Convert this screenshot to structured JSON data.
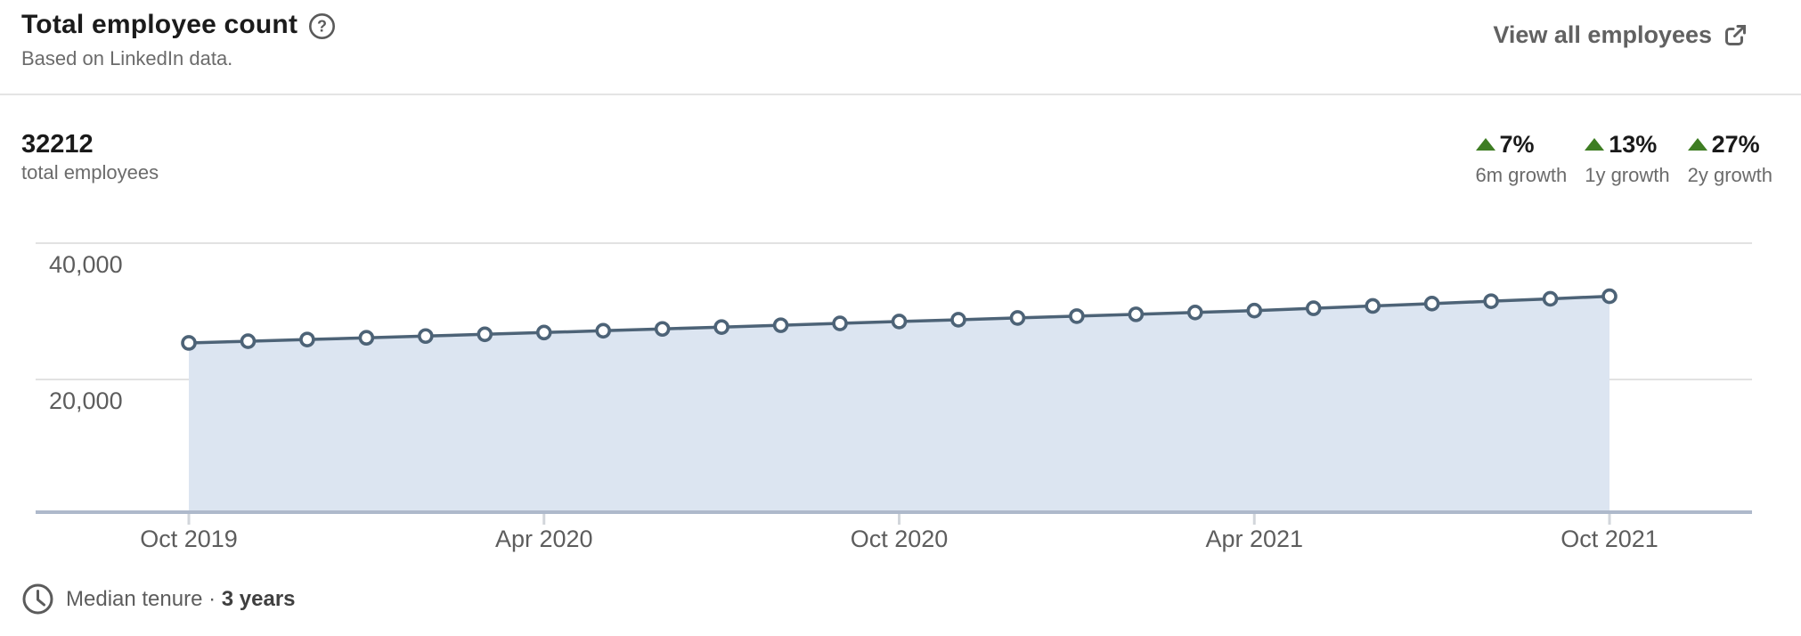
{
  "header": {
    "title": "Total employee count",
    "subtitle": "Based on LinkedIn data.",
    "view_all_label": "View all employees",
    "icons": {
      "help": "help-circle-icon",
      "external": "external-link-icon"
    }
  },
  "stats": {
    "total_value": "32212",
    "total_label": "total employees",
    "growth": [
      {
        "direction": "up",
        "pct": "7%",
        "label": "6m growth"
      },
      {
        "direction": "up",
        "pct": "13%",
        "label": "1y growth"
      },
      {
        "direction": "up",
        "pct": "27%",
        "label": "2y growth"
      }
    ],
    "growth_up_color": "#3e7d23"
  },
  "footer": {
    "median_tenure_label": "Median tenure ·",
    "median_tenure_value": "3 years",
    "icon": "clock-icon"
  },
  "chart_data": {
    "type": "area",
    "title": "Total employee count",
    "x": [
      "Oct 2019",
      "Nov 2019",
      "Dec 2019",
      "Jan 2020",
      "Feb 2020",
      "Mar 2020",
      "Apr 2020",
      "May 2020",
      "Jun 2020",
      "Jul 2020",
      "Aug 2020",
      "Sep 2020",
      "Oct 2020",
      "Nov 2020",
      "Dec 2020",
      "Jan 2021",
      "Feb 2021",
      "Mar 2021",
      "Apr 2021",
      "May 2021",
      "Jun 2021",
      "Jul 2021",
      "Aug 2021",
      "Sep 2021",
      "Oct 2021"
    ],
    "values": [
      25364,
      25612,
      25862,
      26115,
      26371,
      26629,
      26889,
      27152,
      27418,
      27686,
      27957,
      28230,
      28506,
      28766,
      29028,
      29293,
      29560,
      29830,
      30104,
      30443,
      30786,
      31133,
      31484,
      31838,
      32212
    ],
    "xtick_indices": [
      0,
      6,
      12,
      18,
      24
    ],
    "xtick_labels": [
      "Oct 2019",
      "Apr 2020",
      "Oct 2020",
      "Apr 2021",
      "Oct 2021"
    ],
    "yticks": [
      {
        "value": 40000,
        "label": "40,000"
      },
      {
        "value": 20000,
        "label": "20,000"
      }
    ],
    "ylim": [
      0,
      44000
    ],
    "grid": true,
    "legend": "none",
    "ylabel": "",
    "xlabel": "",
    "colors": {
      "line": "#4d6377",
      "area": "#dce5f1",
      "point_fill": "#ffffff",
      "grid": "#e2e2e2",
      "axis": "#aeb9cb",
      "tick": "#d2d6db",
      "tick_text": "#5d5d5d"
    }
  }
}
